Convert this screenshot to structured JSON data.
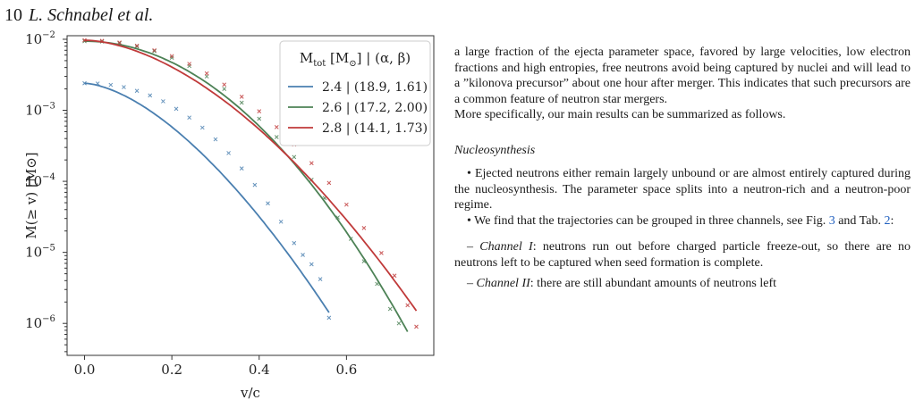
{
  "header": {
    "page_number": "10",
    "authors": "L. Schnabel et al."
  },
  "chart_data": {
    "type": "scatter",
    "xlabel": "v/c",
    "ylabel": "M(≥ v) [M⊙]",
    "xlim": [
      -0.04,
      0.8
    ],
    "ylim_log10": [
      -6.45,
      -1.95
    ],
    "y_scale": "log",
    "x_ticks": [
      0.0,
      0.2,
      0.4,
      0.6
    ],
    "x_tick_labels": [
      "0.0",
      "0.2",
      "0.4",
      "0.6"
    ],
    "y_ticks_log10": [
      -6,
      -5,
      -4,
      -3,
      -2
    ],
    "legend_title": "M_tot [M⊙] | (α, β)",
    "legend_position": "top-right",
    "grid": false,
    "series": [
      {
        "name": "2.4 | (18.9, 1.61)",
        "color": "#4a7fb0",
        "M0": 0.0024,
        "alpha": 18.9,
        "beta": 1.61,
        "vmax": 0.56,
        "scatter": [
          [
            0.0,
            0.0024
          ],
          [
            0.03,
            0.00238
          ],
          [
            0.06,
            0.00228
          ],
          [
            0.09,
            0.00212
          ],
          [
            0.12,
            0.00188
          ],
          [
            0.15,
            0.00162
          ],
          [
            0.18,
            0.00134
          ],
          [
            0.21,
            0.00105
          ],
          [
            0.24,
            0.00079
          ],
          [
            0.27,
            0.00057
          ],
          [
            0.3,
            0.00039
          ],
          [
            0.33,
            0.00025
          ],
          [
            0.36,
            0.000152
          ],
          [
            0.39,
            8.9e-05
          ],
          [
            0.42,
            4.9e-05
          ],
          [
            0.45,
            2.7e-05
          ],
          [
            0.48,
            1.35e-05
          ],
          [
            0.5,
            9.2e-06
          ],
          [
            0.52,
            6.8e-06
          ],
          [
            0.54,
            4.2e-06
          ],
          [
            0.56,
            1.2e-06
          ]
        ]
      },
      {
        "name": "2.6 | (17.2, 2.00)",
        "color": "#4d8256",
        "M0": 0.0094,
        "alpha": 17.2,
        "beta": 2.0,
        "vmax": 0.74,
        "scatter": [
          [
            0.0,
            0.0094
          ],
          [
            0.04,
            0.0093
          ],
          [
            0.08,
            0.0088
          ],
          [
            0.12,
            0.0079
          ],
          [
            0.16,
            0.0068
          ],
          [
            0.2,
            0.0055
          ],
          [
            0.24,
            0.0042
          ],
          [
            0.28,
            0.003
          ],
          [
            0.32,
            0.002
          ],
          [
            0.36,
            0.00128
          ],
          [
            0.4,
            0.00076
          ],
          [
            0.44,
            0.00042
          ],
          [
            0.48,
            0.00022
          ],
          [
            0.52,
            0.000105
          ],
          [
            0.55,
            5.8e-05
          ],
          [
            0.58,
            3.1e-05
          ],
          [
            0.61,
            1.55e-05
          ],
          [
            0.64,
            7.5e-06
          ],
          [
            0.67,
            3.6e-06
          ],
          [
            0.7,
            1.6e-06
          ],
          [
            0.72,
            1e-06
          ]
        ]
      },
      {
        "name": "2.8 | (14.1, 1.73)",
        "color": "#c03a3a",
        "M0": 0.0097,
        "alpha": 14.1,
        "beta": 1.73,
        "vmax": 0.76,
        "scatter": [
          [
            0.0,
            0.0097
          ],
          [
            0.04,
            0.0095
          ],
          [
            0.08,
            0.009
          ],
          [
            0.12,
            0.0081
          ],
          [
            0.16,
            0.007
          ],
          [
            0.2,
            0.0058
          ],
          [
            0.24,
            0.0045
          ],
          [
            0.28,
            0.0033
          ],
          [
            0.32,
            0.0023
          ],
          [
            0.36,
            0.00155
          ],
          [
            0.4,
            0.00097
          ],
          [
            0.44,
            0.00058
          ],
          [
            0.48,
            0.00033
          ],
          [
            0.52,
            0.00018
          ],
          [
            0.56,
            9.5e-05
          ],
          [
            0.6,
            4.7e-05
          ],
          [
            0.64,
            2.2e-05
          ],
          [
            0.68,
            9.8e-06
          ],
          [
            0.71,
            4.7e-06
          ],
          [
            0.74,
            1.8e-06
          ],
          [
            0.76,
            9e-07
          ]
        ]
      }
    ]
  },
  "text": {
    "p1": "a large fraction of the ejecta parameter space, favored by large velocities, low electron fractions and high entropies, free neutrons avoid being captured by nuclei and will lead to a ”kilonova precursor” about one hour after merger. This indicates that such precursors are a common feature of neutron star mergers.",
    "p2": "More specifically, our main results can be summarized as follows.",
    "heading": "Nucleosynthesis",
    "b1": "• Ejected neutrons either remain largely unbound or are almost entirely captured during the nucleosynthesis. The parameter space splits into a neutron-rich and a neutron-poor regime.",
    "b2_pre": "• We find that the trajectories can be grouped in three channels, see Fig. ",
    "b2_fig": "3",
    "b2_mid": " and Tab. ",
    "b2_tab": "2",
    "b2_post": ":",
    "c1_dash": "– ",
    "c1_name": "Channel I",
    "c1_text": ": neutrons run out before charged particle freeze-out, so there are no neutrons left to be captured when seed formation is complete.",
    "c2_dash": "– ",
    "c2_name": "Channel II",
    "c2_text": ": there are still abundant amounts of neutrons left"
  }
}
